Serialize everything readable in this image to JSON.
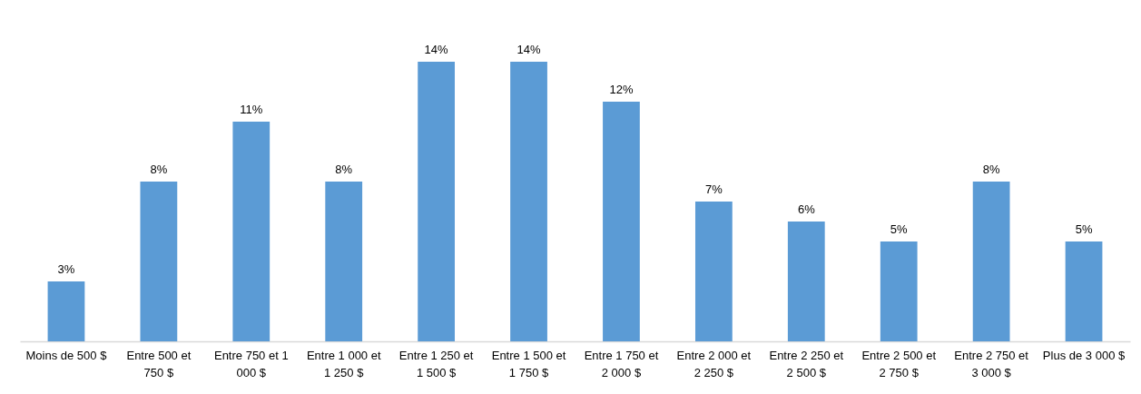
{
  "chart_data": {
    "type": "bar",
    "categories": [
      "Moins de 500 $",
      "Entre 500 et 750 $",
      "Entre 750 et 1 000 $",
      "Entre 1 000 et 1 250 $",
      "Entre 1 250 et 1 500 $",
      "Entre 1 500 et 1 750 $",
      "Entre 1 750 et 2 000 $",
      "Entre 2 000 et 2 250 $",
      "Entre 2 250 et 2 500 $",
      "Entre 2 500 et 2 750 $",
      "Entre 2 750 et 3 000 $",
      "Plus de 3 000 $"
    ],
    "values": [
      3,
      8,
      11,
      8,
      14,
      14,
      12,
      7,
      6,
      5,
      8,
      5
    ],
    "value_labels": [
      "3%",
      "8%",
      "11%",
      "8%",
      "14%",
      "14%",
      "12%",
      "7%",
      "6%",
      "5%",
      "8%",
      "5%"
    ],
    "color": "#5b9bd5"
  }
}
